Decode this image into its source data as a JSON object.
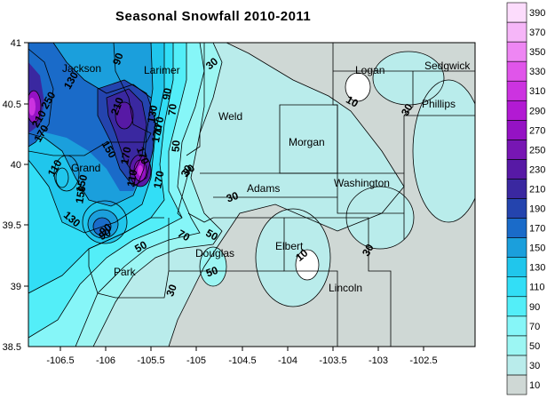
{
  "title": "Seasonal Snowfall 2010-2011",
  "axes": {
    "x_ticks": [
      "-106.5",
      "-106",
      "-105.5",
      "-105",
      "-104.5",
      "-104",
      "-103.5",
      "-103",
      "-102.5"
    ],
    "y_ticks": [
      "41",
      "40.5",
      "40",
      "39.5",
      "39",
      "38.5"
    ],
    "xlim": [
      -106.9,
      -102.0
    ],
    "ylim": [
      38.5,
      41.0
    ]
  },
  "counties": [
    "Jackson",
    "Larimer",
    "Logan",
    "Sedgwick",
    "Phillips",
    "Weld",
    "Morgan",
    "Grand",
    "Adams",
    "Washington",
    "Elbert",
    "Douglas",
    "Park",
    "Lincoln"
  ],
  "contour_labels": [
    "90",
    "130",
    "170",
    "210",
    "250",
    "90",
    "130",
    "170",
    "210",
    "150",
    "170",
    "50",
    "110",
    "70",
    "170",
    "30",
    "110",
    "150",
    "70",
    "50",
    "90",
    "130",
    "170",
    "90",
    "150",
    "170",
    "30",
    "10",
    "30",
    "30",
    "10",
    "30",
    "50",
    "30",
    "50",
    "30"
  ],
  "legend": {
    "levels": [
      "10",
      "30",
      "50",
      "70",
      "90",
      "110",
      "130",
      "150",
      "170",
      "190",
      "210",
      "230",
      "250",
      "270",
      "290",
      "310",
      "330",
      "350",
      "370",
      "390"
    ],
    "colors": [
      "#cfd8d5",
      "#b9eceb",
      "#9cf6f3",
      "#86f6f8",
      "#53eef8",
      "#32def6",
      "#20c6ec",
      "#1b9fdc",
      "#1a6bc9",
      "#2444ae",
      "#3a28a0",
      "#5719a5",
      "#7716b3",
      "#9512c4",
      "#b21ad3",
      "#cc33e0",
      "#e055ea",
      "#ee86f3",
      "#f6b6f8",
      "#fcdcfc"
    ]
  },
  "colors": {
    "background_fill": "#cfd8d5",
    "deep_purple": "#3a28a0",
    "magenta": "#cc33e0"
  }
}
